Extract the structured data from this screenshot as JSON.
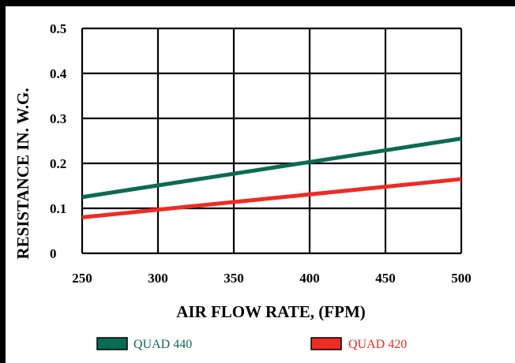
{
  "chart_data": {
    "type": "line",
    "xlabel": "AIR FLOW RATE, (FPM)",
    "ylabel": "RESISTANCE IN. W.G.",
    "xlim": [
      250,
      500
    ],
    "ylim": [
      0,
      0.5
    ],
    "xticks": [
      "250",
      "300",
      "350",
      "400",
      "450",
      "500"
    ],
    "yticks": [
      "0",
      "0.1",
      "0.2",
      "0.3",
      "0.4",
      "0.5"
    ],
    "grid": true,
    "legend_position": "bottom",
    "series": [
      {
        "name": "QUAD 440",
        "color": "#0b6b52",
        "x": [
          250,
          500
        ],
        "y": [
          0.125,
          0.255
        ]
      },
      {
        "name": "QUAD 420",
        "color": "#ee2b24",
        "x": [
          250,
          500
        ],
        "y": [
          0.08,
          0.165
        ]
      }
    ]
  }
}
